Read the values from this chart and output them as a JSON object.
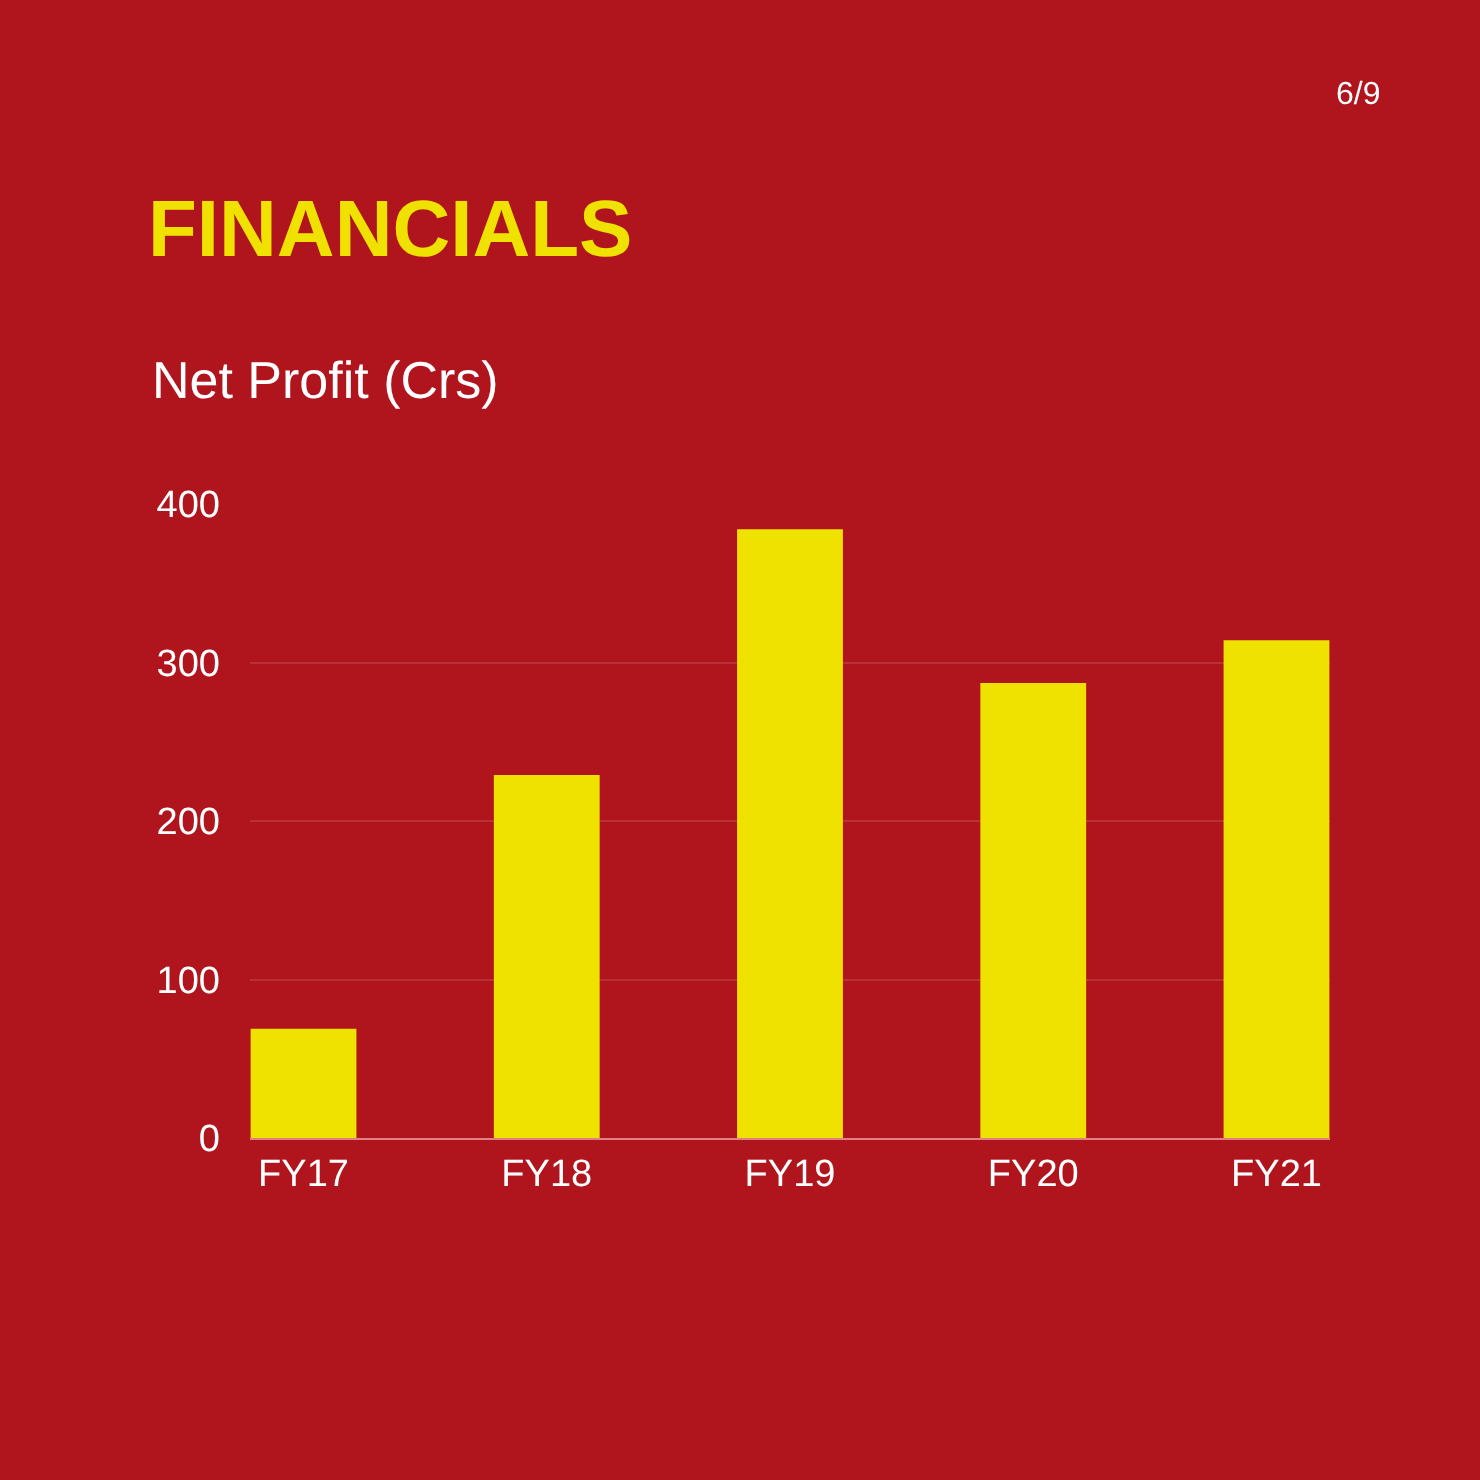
{
  "chart_data": {
    "type": "bar",
    "title": "FINANCIALS",
    "subtitle": "Net Profit (Crs)",
    "annotations": [
      "6/9"
    ],
    "categories": [
      "FY17",
      "FY18",
      "FY19",
      "FY20",
      "FY21"
    ],
    "values": [
      69,
      229,
      384,
      287,
      314
    ],
    "color": "#f0e200",
    "ylim": [
      0,
      400
    ],
    "yticks": [
      0,
      100,
      200,
      300,
      400
    ],
    "grid": "y"
  }
}
